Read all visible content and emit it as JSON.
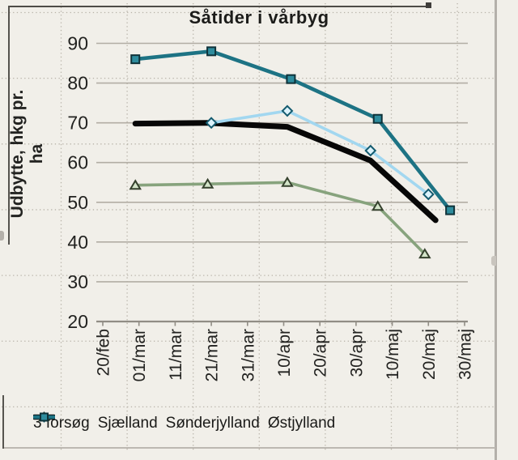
{
  "chart_data": {
    "type": "line",
    "title": "Såtider i vårbyg",
    "ylabel": "Udbytte, hkg pr. ha",
    "xlabel": "",
    "x_axis": {
      "tick_labels": [
        "20/feb",
        "01/mar",
        "11/mar",
        "21/mar",
        "31/mar",
        "10/apr",
        "20/apr",
        "30/apr",
        "10/maj",
        "20/maj",
        "30/maj"
      ],
      "tick_interval_days": 10,
      "start": "20/feb",
      "end": "30/maj"
    },
    "y_axis": {
      "ticks": [
        20,
        30,
        40,
        50,
        60,
        70,
        80,
        90
      ],
      "range": [
        20,
        93
      ]
    },
    "grid": "solid horizontal gridlines every 10 units; faint dotted page grid over whole image",
    "legend_position": "bottom",
    "series": [
      {
        "name": "3 forsøg",
        "slug": "3-forsog",
        "marker": "none",
        "color": "#070707",
        "marker_fill": "#070707",
        "marker_stroke": "#070707",
        "points": [
          {
            "date": "01/mar",
            "day": 9,
            "value": 69.8
          },
          {
            "date": "21/mar",
            "day": 29,
            "value": 70
          },
          {
            "date": "10/apr",
            "day": 51,
            "value": 69
          },
          {
            "date": "05/maj",
            "day": 74,
            "value": 60.5
          },
          {
            "date": "22/maj",
            "day": 92,
            "value": 45.5
          }
        ]
      },
      {
        "name": "Sjælland",
        "slug": "sjaelland",
        "marker": "diamond",
        "color": "#a2d7f0",
        "marker_fill": "#dbf2fb",
        "marker_stroke": "#135a6e",
        "points": [
          {
            "date": "22/mar",
            "day": 30,
            "value": 70
          },
          {
            "date": "10/apr",
            "day": 51,
            "value": 73
          },
          {
            "date": "05/maj",
            "day": 74,
            "value": 63
          },
          {
            "date": "20/maj",
            "day": 90,
            "value": 52
          }
        ]
      },
      {
        "name": "Sønderjylland",
        "slug": "sonderjylland",
        "marker": "triangle",
        "color": "#87a37d",
        "marker_fill": "#d3e4c9",
        "marker_stroke": "#35412d",
        "points": [
          {
            "date": "01/mar",
            "day": 9,
            "value": 54.3
          },
          {
            "date": "21/mar",
            "day": 29,
            "value": 54.6
          },
          {
            "date": "10/apr",
            "day": 51,
            "value": 55
          },
          {
            "date": "07/maj",
            "day": 76,
            "value": 49
          },
          {
            "date": "19/maj",
            "day": 89,
            "value": 37
          }
        ]
      },
      {
        "name": "Østjylland",
        "slug": "ostjylland",
        "marker": "square",
        "color": "#1d7384",
        "marker_fill": "#2e8c9d",
        "marker_stroke": "#0f3239",
        "points": [
          {
            "date": "01/mar",
            "day": 9,
            "value": 86
          },
          {
            "date": "22/mar",
            "day": 30,
            "value": 88
          },
          {
            "date": "11/apr",
            "day": 52,
            "value": 81
          },
          {
            "date": "07/maj",
            "day": 76,
            "value": 71
          },
          {
            "date": "26/maj",
            "day": 96,
            "value": 48
          }
        ]
      }
    ]
  },
  "colors": {
    "background": "#f1efe9",
    "gridline": "#b2ada4",
    "axis": "#918d85",
    "tick_text": "#222220",
    "dot_grid": "#b7b2a8",
    "selection_border_dark": "#4d4b47",
    "selection_border_light": "#b4b0aa"
  }
}
